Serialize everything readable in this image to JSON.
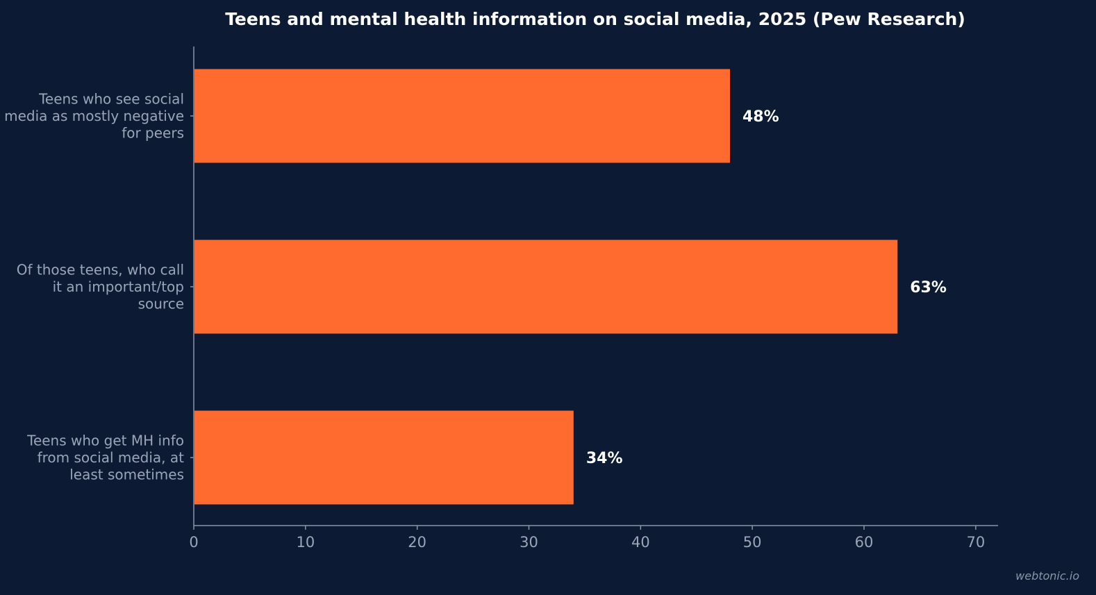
{
  "watermark": "webtonic.io",
  "chart_data": {
    "type": "bar",
    "orientation": "horizontal",
    "title": "Teens and mental health information on social media, 2025 (Pew Research)",
    "xlabel": "",
    "ylabel": "",
    "categories": [
      [
        "Teens who see social",
        "media as mostly negative",
        "for peers"
      ],
      [
        "Of those teens, who call",
        "it an important/top",
        "source"
      ],
      [
        "Teens who get MH info",
        "from social media, at",
        "least sometimes"
      ]
    ],
    "values": [
      48,
      63,
      34
    ],
    "value_labels": [
      "48%",
      "63%",
      "34%"
    ],
    "xlim": [
      0,
      72
    ],
    "xticks": [
      0,
      10,
      20,
      30,
      40,
      50,
      60,
      70
    ],
    "grid": false,
    "legend": "none",
    "colors": {
      "bar": "#ff6b2e",
      "background": "#0c1b33",
      "axis": "#8b95a8",
      "text": "#ffffff",
      "muted_text": "#9aa5b8"
    }
  }
}
